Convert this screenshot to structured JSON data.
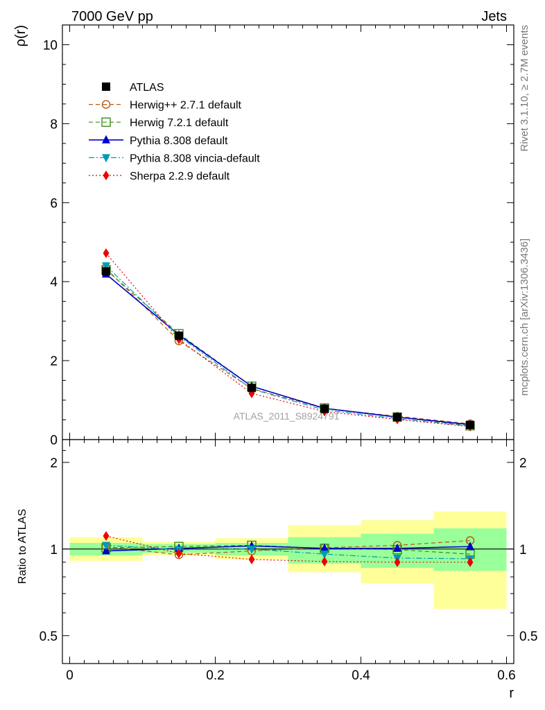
{
  "header": {
    "left_title": "7000 GeV pp",
    "right_title": "Jets"
  },
  "side_texts": {
    "rivet": "Rivet 3.1.10, ≥ 2.7M events",
    "mcplots": "mcplots.cern.ch [arXiv:1306.3436]"
  },
  "chart_data": [
    {
      "type": "line",
      "panel": "main",
      "ylabel": "ρ(r)",
      "xlabel": "r",
      "xlim": [
        -0.01,
        0.61
      ],
      "ylim": [
        0,
        10.5
      ],
      "x_ticks": [
        0,
        0.2,
        0.4,
        0.6
      ],
      "x_tick_labels": [
        "0",
        "0.2",
        "0.4",
        "0.6"
      ],
      "y_ticks": [
        0,
        2,
        4,
        6,
        8,
        10
      ],
      "y_tick_labels": [
        "0",
        "2",
        "4",
        "6",
        "8",
        "10"
      ],
      "watermark": "ATLAS_2011_S8924791",
      "legend_position": "top-left",
      "x": [
        0.05,
        0.15,
        0.25,
        0.35,
        0.45,
        0.55
      ],
      "series": [
        {
          "name": "ATLAS",
          "color": "#000000",
          "marker": "square",
          "dash": "none",
          "values": [
            4.26,
            2.63,
            1.31,
            0.78,
            0.57,
            0.37
          ]
        },
        {
          "name": "Herwig++ 2.7.1 default",
          "color": "#b8590e",
          "marker": "circle-open",
          "dash": "dashed",
          "values": [
            4.33,
            2.5,
            1.29,
            0.79,
            0.59,
            0.4
          ]
        },
        {
          "name": "Herwig 7.2.1 default",
          "color": "#3a8c1a",
          "marker": "square-open",
          "dash": "dashed",
          "values": [
            4.3,
            2.68,
            1.35,
            0.8,
            0.57,
            0.35
          ]
        },
        {
          "name": "Pythia 8.308 default",
          "color": "#0000cc",
          "marker": "triangle-up",
          "dash": "solid",
          "values": [
            4.19,
            2.65,
            1.35,
            0.79,
            0.57,
            0.38
          ]
        },
        {
          "name": "Pythia 8.308 vincia-default",
          "color": "#0098b8",
          "marker": "triangle-down",
          "dash": "dashdot",
          "values": [
            4.4,
            2.62,
            1.28,
            0.75,
            0.53,
            0.34
          ]
        },
        {
          "name": "Sherpa 2.2.9 default",
          "color": "#ee0000",
          "marker": "diamond",
          "dash": "dotted",
          "values": [
            4.72,
            2.54,
            1.17,
            0.71,
            0.51,
            0.33
          ]
        }
      ]
    },
    {
      "type": "line",
      "panel": "ratio",
      "ylabel": "Ratio to ATLAS",
      "xlabel": "r",
      "yscale": "log",
      "xlim": [
        -0.01,
        0.61
      ],
      "ylim": [
        0.4,
        2.4
      ],
      "y_ticks": [
        0.5,
        1,
        2
      ],
      "y_tick_labels": [
        "0.5",
        "1",
        "2"
      ],
      "bands": {
        "x_edges": [
          0.0,
          0.1,
          0.2,
          0.3,
          0.4,
          0.5,
          0.6
        ],
        "yellow_low": [
          0.91,
          0.95,
          0.92,
          0.83,
          0.76,
          0.62
        ],
        "yellow_high": [
          1.1,
          1.06,
          1.09,
          1.21,
          1.26,
          1.35
        ],
        "green_low": [
          0.95,
          0.97,
          0.95,
          0.89,
          0.86,
          0.84
        ],
        "green_high": [
          1.05,
          1.04,
          1.05,
          1.1,
          1.13,
          1.18
        ]
      },
      "x": [
        0.05,
        0.15,
        0.25,
        0.35,
        0.45,
        0.55
      ],
      "series": [
        {
          "name": "Herwig++ 2.7.1 default",
          "values": [
            1.02,
            0.955,
            0.985,
            1.01,
            1.03,
            1.07
          ]
        },
        {
          "name": "Herwig 7.2.1 default",
          "values": [
            1.01,
            1.02,
            1.03,
            1.005,
            0.995,
            0.96
          ]
        },
        {
          "name": "Pythia 8.308 default",
          "values": [
            0.985,
            1.005,
            1.025,
            1.005,
            1.005,
            1.02
          ]
        },
        {
          "name": "Pythia 8.308 vincia-default",
          "values": [
            1.03,
            0.995,
            1.0,
            0.96,
            0.93,
            0.925
          ]
        },
        {
          "name": "Sherpa 2.2.9 default",
          "values": [
            1.11,
            0.965,
            0.92,
            0.905,
            0.9,
            0.9
          ]
        }
      ]
    }
  ]
}
